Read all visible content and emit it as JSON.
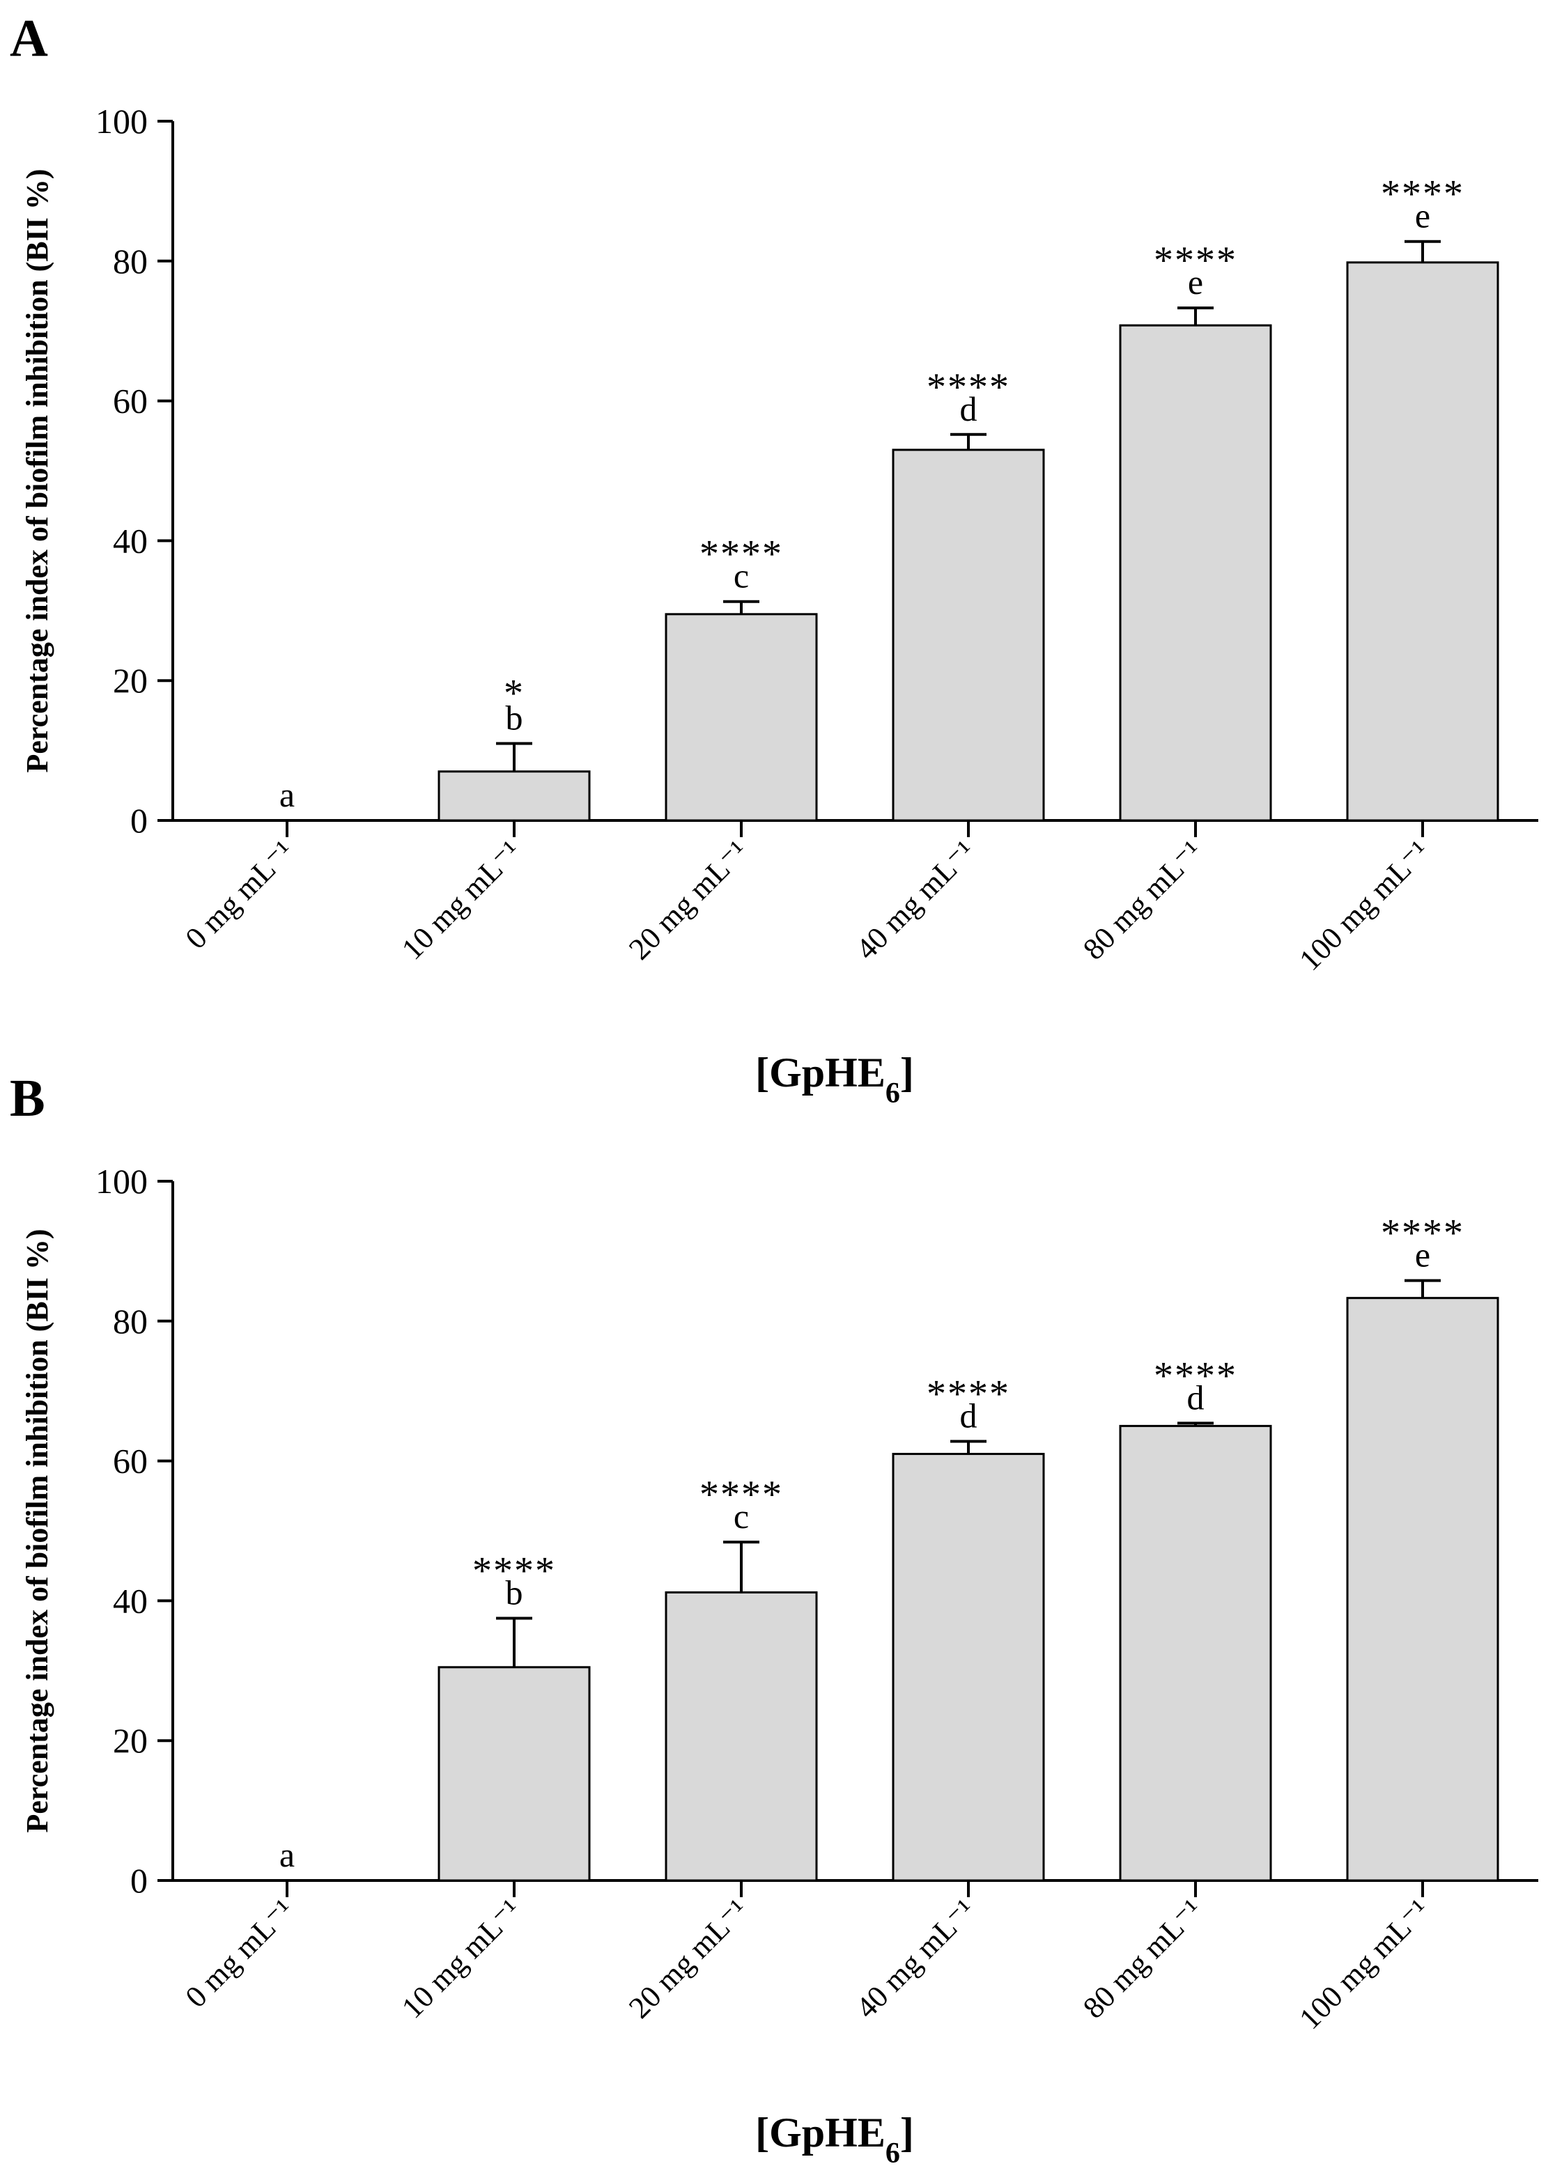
{
  "colors": {
    "bar_fill": "#d9d9d9",
    "stroke": "#000000",
    "background": "#ffffff"
  },
  "chart_data": [
    {
      "panel": "A",
      "type": "bar",
      "categories": [
        "0 mg mL⁻¹",
        "10 mg mL⁻¹",
        "20 mg mL⁻¹",
        "40 mg mL⁻¹",
        "80 mg mL⁻¹",
        "100 mg mL⁻¹"
      ],
      "values": [
        0,
        7,
        29.5,
        53,
        70.8,
        79.8
      ],
      "errors": [
        0,
        4,
        1.8,
        2.2,
        2.5,
        3
      ],
      "letters": [
        "a",
        "b",
        "c",
        "d",
        "e",
        "e"
      ],
      "stars": [
        "",
        "*",
        "****",
        "****",
        "****",
        "****"
      ],
      "ylabel": "Percentage index of biofilm inhibition (BII %)",
      "xlabel_main": "[GpHE",
      "xlabel_sub": "6",
      "xlabel_end": "]",
      "ylim": [
        0,
        100
      ],
      "yticks": [
        0,
        20,
        40,
        60,
        80,
        100
      ]
    },
    {
      "panel": "B",
      "type": "bar",
      "categories": [
        "0 mg mL⁻¹",
        "10 mg mL⁻¹",
        "20 mg mL⁻¹",
        "40 mg mL⁻¹",
        "80 mg mL⁻¹",
        "100 mg mL⁻¹"
      ],
      "values": [
        0,
        30.5,
        41.2,
        61,
        65,
        83.3
      ],
      "errors": [
        0,
        7,
        7.2,
        1.8,
        0.4,
        2.5
      ],
      "letters": [
        "a",
        "b",
        "c",
        "d",
        "d",
        "e"
      ],
      "stars": [
        "",
        "****",
        "****",
        "****",
        "****",
        "****"
      ],
      "ylabel": "Percentage index of biofilm inhibition (BII %)",
      "xlabel_main": "[GpHE",
      "xlabel_sub": "6",
      "xlabel_end": "]",
      "ylim": [
        0,
        100
      ],
      "yticks": [
        0,
        20,
        40,
        60,
        80,
        100
      ]
    }
  ]
}
